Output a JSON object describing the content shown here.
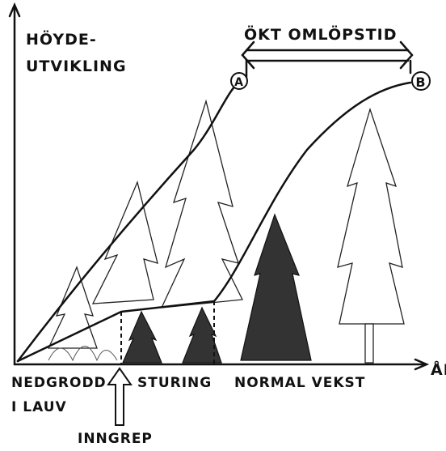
{
  "y_axis_label": [
    "HÖYDE-",
    "UTVIKLING"
  ],
  "x_axis_label": "ÅR",
  "span_label": "ÖKT OMLÖPSTID",
  "points": [
    "A",
    "B"
  ],
  "phases": [
    {
      "lines": [
        "NEDGRODD",
        "I LAUV"
      ]
    },
    {
      "lines": [
        "STURING"
      ]
    },
    {
      "lines": [
        "NORMAL VEKST"
      ]
    }
  ],
  "intervention": "INNGREP"
}
